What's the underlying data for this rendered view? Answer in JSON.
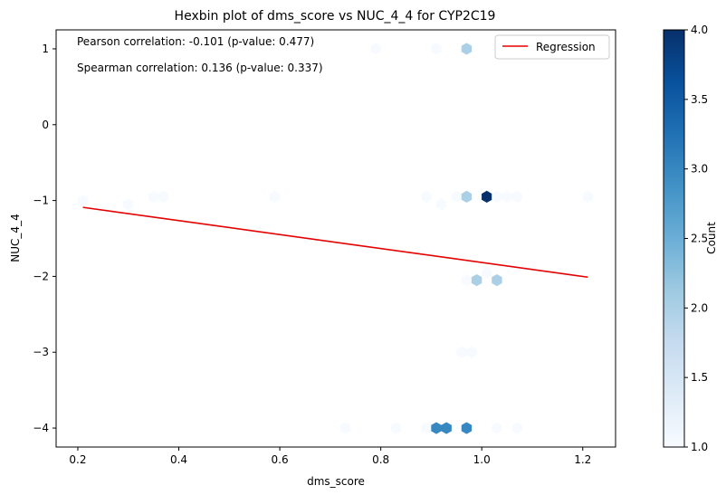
{
  "chart_data": {
    "type": "hexbin",
    "title": "Hexbin plot of dms_score vs NUC_4_4 for CYP2C19",
    "xlabel": "dms_score",
    "ylabel": "NUC_4_4",
    "xlim": [
      0.157,
      1.265
    ],
    "ylim": [
      -4.25,
      1.25
    ],
    "x_ticks": [
      {
        "value": 0.2,
        "label": "0.2"
      },
      {
        "value": 0.4,
        "label": "0.4"
      },
      {
        "value": 0.6,
        "label": "0.6"
      },
      {
        "value": 0.8,
        "label": "0.8"
      },
      {
        "value": 1.0,
        "label": "1.0"
      },
      {
        "value": 1.2,
        "label": "1.2"
      }
    ],
    "y_ticks": [
      {
        "value": 1,
        "label": "1"
      },
      {
        "value": 0,
        "label": "0"
      },
      {
        "value": -1,
        "label": "−1"
      },
      {
        "value": -2,
        "label": "−2"
      },
      {
        "value": -3,
        "label": "−3"
      },
      {
        "value": -4,
        "label": "−4"
      }
    ],
    "annotations": [
      "Pearson correlation: -0.101 (p-value: 0.477)",
      "Spearman correlation: 0.136 (p-value: 0.337)"
    ],
    "legend": {
      "label": "Regression",
      "position": "top-right",
      "color": "#e60000"
    },
    "regression": {
      "x": [
        0.21,
        1.21
      ],
      "y": [
        -1.09,
        -2.01
      ]
    },
    "colorbar": {
      "label": "Count",
      "min": 1.0,
      "max": 4.0,
      "ticks": [
        {
          "value": 1.0,
          "label": "1.0"
        },
        {
          "value": 1.5,
          "label": "1.5"
        },
        {
          "value": 2.0,
          "label": "2.0"
        },
        {
          "value": 2.5,
          "label": "2.5"
        },
        {
          "value": 3.0,
          "label": "3.0"
        },
        {
          "value": 3.5,
          "label": "3.5"
        },
        {
          "value": 4.0,
          "label": "4.0"
        }
      ],
      "colormap": "Blues"
    },
    "cells": [
      {
        "x": 0.79,
        "y": 1,
        "count": 1
      },
      {
        "x": 0.91,
        "y": 1,
        "count": 1
      },
      {
        "x": 0.97,
        "y": 1,
        "count": 2
      },
      {
        "x": 0.21,
        "y": -1,
        "count": 1
      },
      {
        "x": 0.3,
        "y": -1.05,
        "count": 1
      },
      {
        "x": 0.35,
        "y": -0.95,
        "count": 1
      },
      {
        "x": 0.37,
        "y": -0.95,
        "count": 1
      },
      {
        "x": 0.59,
        "y": -0.95,
        "count": 1
      },
      {
        "x": 0.89,
        "y": -0.95,
        "count": 1
      },
      {
        "x": 0.92,
        "y": -1.05,
        "count": 1
      },
      {
        "x": 0.95,
        "y": -0.95,
        "count": 1
      },
      {
        "x": 0.97,
        "y": -0.95,
        "count": 2
      },
      {
        "x": 1.01,
        "y": -0.95,
        "count": 4
      },
      {
        "x": 1.03,
        "y": -0.95,
        "count": 1
      },
      {
        "x": 1.05,
        "y": -0.95,
        "count": 1
      },
      {
        "x": 1.07,
        "y": -0.95,
        "count": 1
      },
      {
        "x": 1.21,
        "y": -0.95,
        "count": 1
      },
      {
        "x": 0.97,
        "y": -2.05,
        "count": 1
      },
      {
        "x": 0.99,
        "y": -2.05,
        "count": 2
      },
      {
        "x": 1.01,
        "y": -1.95,
        "count": 1
      },
      {
        "x": 1.03,
        "y": -2.05,
        "count": 2
      },
      {
        "x": 0.96,
        "y": -3.0,
        "count": 1
      },
      {
        "x": 0.98,
        "y": -3.0,
        "count": 1
      },
      {
        "x": 0.73,
        "y": -4,
        "count": 1
      },
      {
        "x": 0.83,
        "y": -4,
        "count": 1
      },
      {
        "x": 0.89,
        "y": -4,
        "count": 1
      },
      {
        "x": 0.91,
        "y": -4,
        "count": 3
      },
      {
        "x": 0.93,
        "y": -4,
        "count": 3
      },
      {
        "x": 0.97,
        "y": -4,
        "count": 3
      },
      {
        "x": 1.03,
        "y": -4,
        "count": 1
      },
      {
        "x": 1.07,
        "y": -4,
        "count": 1
      }
    ]
  }
}
